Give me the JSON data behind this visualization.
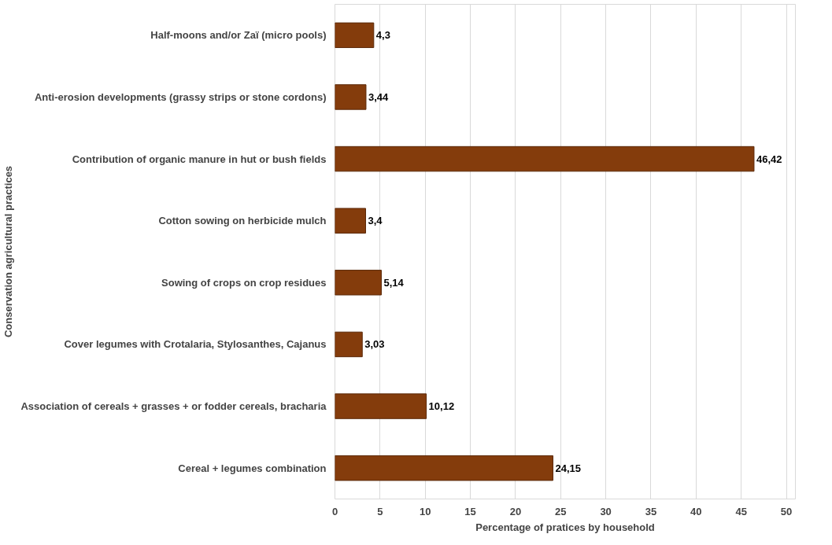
{
  "chart_data": {
    "type": "bar",
    "orientation": "horizontal",
    "xlabel": "Percentage of pratices by household",
    "ylabel": "Conservation agricultural practices",
    "categories": [
      "Half-moons and/or Zaï (micro pools)",
      "Anti-erosion developments (grassy strips or stone cordons)",
      "Contribution of organic manure in hut or bush fields",
      "Cotton sowing on herbicide mulch",
      "Sowing of crops on crop residues",
      "Cover legumes with Crotalaria, Stylosanthes, Cajanus",
      "Association of cereals + grasses + or fodder cereals, bracharia",
      "Cereal + legumes combination"
    ],
    "values": [
      4.3,
      3.44,
      46.42,
      3.4,
      5.14,
      3.03,
      10.12,
      24.15
    ],
    "value_labels": [
      "4,3",
      "3,44",
      "46,42",
      "3,4",
      "5,14",
      "3,03",
      "10,12",
      "24,15"
    ],
    "color": "#843c0c",
    "xlim": [
      0,
      51
    ],
    "xticks": [
      0,
      5,
      10,
      15,
      20,
      25,
      30,
      35,
      40,
      45,
      50
    ],
    "grid": "x"
  }
}
